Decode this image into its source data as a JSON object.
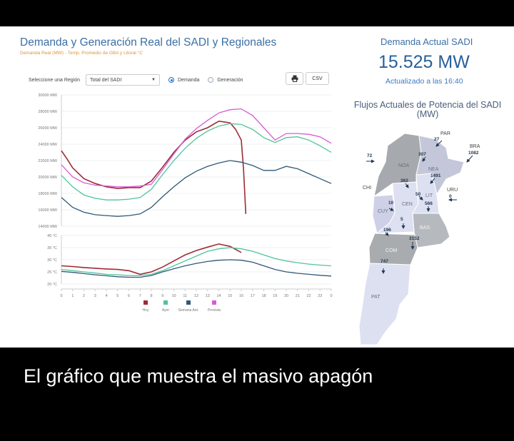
{
  "chart_title": "Demanda y Generación Real del SADI y Regionales",
  "chart_subtitle": "Demanda Real (MW) - Temp. Promedio de GBA y Litoral °C",
  "region_label": "Seleccione una Región",
  "region_value": "Total del SADI",
  "radio_demand": "Demanda",
  "radio_generation": "Generación",
  "csv_label": "CSV",
  "demand_label": "Demanda Actual SADI",
  "demand_value": "15.525 MW",
  "updated": "Actualizado a las 16:40",
  "flows_title": "Flujos Actuales de Potencia del SADI (MW)",
  "caption": "El gráfico que muestra el masivo apagón",
  "icons": {
    "print": "printer-icon",
    "dropdown": "chevron-down-icon"
  },
  "colors": {
    "hoy": "#9e2a34",
    "ayer": "#4fc49a",
    "semana": "#2f5878",
    "prevista": "#d55cd5"
  },
  "legend": [
    "Hoy",
    "Ayer",
    "Semana Ant.",
    "Prevista"
  ],
  "map_regions": [
    "NOA",
    "NEA",
    "CEN",
    "LIT",
    "CUY",
    "BAS",
    "COM",
    "PAT"
  ],
  "map_countries": [
    "PAR",
    "BRA",
    "URU",
    "CHI"
  ],
  "map_flows": [
    "27",
    "1082",
    "307",
    "72",
    "1491",
    "362",
    "50",
    "0",
    "10",
    "566",
    "5",
    "196",
    "3152",
    "747"
  ],
  "chart_data": [
    {
      "type": "line",
      "ylabel": "",
      "ylim": [
        14000,
        30000
      ],
      "yticks": [
        "30000 MW",
        "28000 MW",
        "26000 MW",
        "24000 MW",
        "22000 MW",
        "20000 MW",
        "18000 MW",
        "16000 MW",
        "14000 MW"
      ],
      "xticks": [
        "0",
        "1",
        "2",
        "3",
        "4",
        "5",
        "6",
        "7",
        "8",
        "9",
        "10",
        "11",
        "12",
        "13",
        "14",
        "15",
        "16",
        "17",
        "18",
        "19",
        "20",
        "21",
        "22",
        "23",
        "0"
      ],
      "series": [
        {
          "name": "Hoy",
          "x": [
            0,
            0.5,
            1,
            2,
            3,
            4,
            5,
            6,
            7,
            8,
            9,
            10,
            11,
            12,
            13,
            14,
            15,
            15.5,
            16,
            16.2,
            16.4
          ],
          "y": [
            23200,
            22200,
            21100,
            19800,
            19200,
            18800,
            18600,
            18700,
            18700,
            19500,
            21200,
            23000,
            24500,
            25500,
            26000,
            26800,
            26600,
            25800,
            24500,
            21000,
            15500
          ]
        },
        {
          "name": "Ayer",
          "x": [
            0,
            1,
            2,
            3,
            4,
            5,
            6,
            7,
            8,
            9,
            10,
            11,
            12,
            13,
            14,
            15,
            16,
            17,
            18,
            19,
            20,
            21,
            22,
            23,
            24
          ],
          "y": [
            20200,
            18800,
            17800,
            17400,
            17200,
            17200,
            17300,
            17500,
            18500,
            20300,
            22000,
            23500,
            24700,
            25600,
            26200,
            26500,
            26400,
            25800,
            24800,
            24200,
            24800,
            24900,
            24500,
            23800,
            23000
          ]
        },
        {
          "name": "Semana Ant.",
          "x": [
            0,
            1,
            2,
            3,
            4,
            5,
            6,
            7,
            8,
            9,
            10,
            11,
            12,
            13,
            14,
            15,
            16,
            17,
            18,
            19,
            20,
            21,
            22,
            23,
            24
          ],
          "y": [
            17500,
            16300,
            15700,
            15400,
            15300,
            15200,
            15300,
            15500,
            16300,
            17600,
            18800,
            19900,
            20700,
            21300,
            21700,
            22000,
            21800,
            21400,
            20800,
            20800,
            21300,
            21000,
            20400,
            19800,
            19200
          ]
        },
        {
          "name": "Prevista",
          "x": [
            0,
            1,
            2,
            3,
            4,
            5,
            6,
            7,
            8,
            9,
            10,
            11,
            12,
            13,
            14,
            15,
            16,
            17,
            18,
            19,
            20,
            21,
            22,
            23,
            24
          ],
          "y": [
            21500,
            20000,
            19300,
            19000,
            18900,
            18800,
            18800,
            18900,
            19100,
            20900,
            22800,
            24600,
            25900,
            26900,
            27800,
            28200,
            28300,
            27500,
            26000,
            24500,
            25300,
            25300,
            25200,
            24900,
            24100
          ]
        }
      ]
    },
    {
      "type": "line",
      "ylabel": "",
      "ylim": [
        20,
        40
      ],
      "yticks": [
        "40 °C",
        "35 °C",
        "30 °C",
        "25 °C",
        "20 °C"
      ],
      "xticks": [
        "0",
        "1",
        "2",
        "3",
        "4",
        "5",
        "6",
        "7",
        "8",
        "9",
        "10",
        "11",
        "12",
        "13",
        "14",
        "15",
        "16",
        "17",
        "18",
        "19",
        "20",
        "21",
        "22",
        "23",
        "0"
      ],
      "series": [
        {
          "name": "Hoy",
          "x": [
            0,
            1,
            2,
            3,
            4,
            5,
            6,
            7,
            8,
            9,
            10,
            11,
            12,
            13,
            14,
            15,
            16
          ],
          "y": [
            27.5,
            27.2,
            26.8,
            26.5,
            26.2,
            26.0,
            25.5,
            24.0,
            25.0,
            27.0,
            29.5,
            32.0,
            33.8,
            35.2,
            36.5,
            35.5,
            33.0
          ]
        },
        {
          "name": "Ayer",
          "x": [
            0,
            1,
            2,
            3,
            4,
            5,
            6,
            7,
            8,
            9,
            10,
            11,
            12,
            13,
            14,
            15,
            16,
            17,
            18,
            19,
            20,
            21,
            22,
            23,
            24
          ],
          "y": [
            26.0,
            25.5,
            25.0,
            24.5,
            24.0,
            23.8,
            23.5,
            23.5,
            24.0,
            25.5,
            27.5,
            29.5,
            31.5,
            33.5,
            34.5,
            35.0,
            34.5,
            33.5,
            32.0,
            30.5,
            29.5,
            28.8,
            28.2,
            27.8,
            27.5
          ]
        },
        {
          "name": "Semana Ant.",
          "x": [
            0,
            1,
            2,
            3,
            4,
            5,
            6,
            7,
            8,
            9,
            10,
            11,
            12,
            13,
            14,
            15,
            16,
            17,
            18,
            19,
            20,
            21,
            22,
            23,
            24
          ],
          "y": [
            25.2,
            24.8,
            24.3,
            23.8,
            23.4,
            23.0,
            22.8,
            22.8,
            23.5,
            25.0,
            26.3,
            27.5,
            28.5,
            29.3,
            29.8,
            30.0,
            29.8,
            29.0,
            27.5,
            26.0,
            25.0,
            24.4,
            24.0,
            23.6,
            23.3
          ]
        }
      ]
    }
  ]
}
